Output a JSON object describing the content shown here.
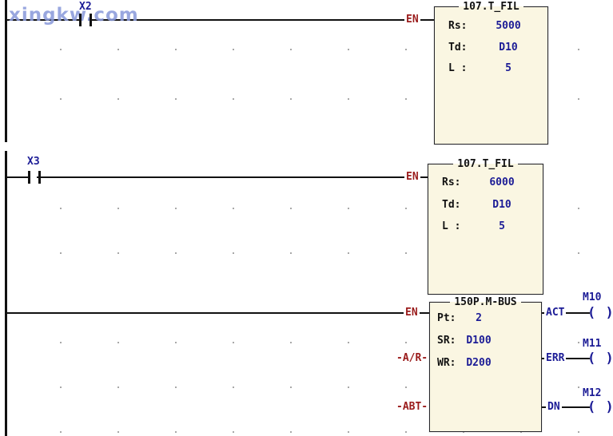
{
  "watermark": {
    "text": "xingkw.com",
    "color": "#8b9bdb"
  },
  "palette": {
    "navy": "#1c1c96",
    "red": "#9a1b1b",
    "block_fill": "#faf6e2",
    "line_color": "#111111",
    "dot_color": "#a8a8a8"
  },
  "contacts": [
    {
      "label": "X2",
      "type": "normally-open"
    },
    {
      "label": "X3",
      "type": "normally-open"
    }
  ],
  "coil_symbol": "( )",
  "blocks": [
    {
      "title": "107.T_FIL",
      "pins": {
        "en": "EN"
      },
      "params": [
        {
          "label": "Rs:",
          "value": "5000"
        },
        {
          "label": "Td:",
          "value": "D10"
        },
        {
          "label": "L :",
          "value": "5"
        }
      ]
    },
    {
      "title": "107.T_FIL",
      "pins": {
        "en": "EN"
      },
      "params": [
        {
          "label": "Rs:",
          "value": "6000"
        },
        {
          "label": "Td:",
          "value": "D10"
        },
        {
          "label": "L :",
          "value": "5"
        }
      ]
    },
    {
      "title": "150P.M-BUS",
      "pins": {
        "en": "EN",
        "ar": "-A/R-",
        "abt": "-ABT-"
      },
      "params": [
        {
          "label": "Pt:",
          "value": "2"
        },
        {
          "label": "SR:",
          "value": "D100"
        },
        {
          "label": "WR:",
          "value": "D200"
        }
      ],
      "outputs": [
        {
          "label": "ACT",
          "coil": "M10"
        },
        {
          "label": "ERR",
          "coil": "M11"
        },
        {
          "label": "DN",
          "coil": "M12"
        }
      ]
    }
  ]
}
